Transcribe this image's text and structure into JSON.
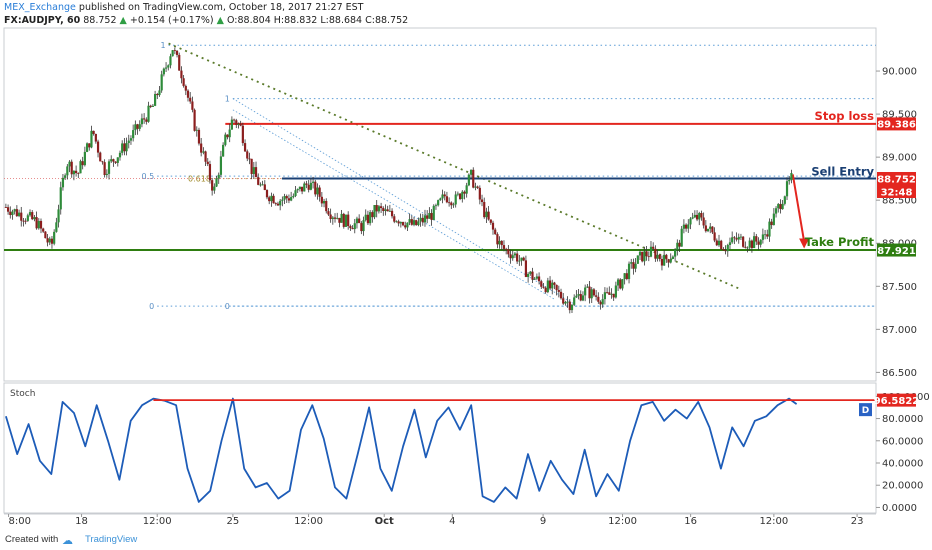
{
  "header": {
    "publisher": "MEX_Exchange",
    "published_text": "published on TradingView.com, October 18, 2017 21:27 EST",
    "symbol": "FX:AUDJPY, 60",
    "last": "88.752",
    "up_arrow_icon": "triangle-up",
    "change": "+0.154 (+0.17%)",
    "ohlc": "O:88.804 H:88.832 L:88.684 C:88.752"
  },
  "footer": {
    "created_with": "Created with",
    "brand_icon": "tradingview-cloud-icon",
    "brand": "TradingView"
  },
  "chart_data": [
    {
      "type": "candlestick",
      "symbol": "FX:AUDJPY",
      "interval": "60",
      "y_ticks": [
        "90.000",
        "89.500",
        "89.000",
        "88.500",
        "88.000",
        "87.500",
        "87.000",
        "86.500"
      ],
      "ylim": [
        86.4,
        90.5
      ],
      "x_tick_labels": [
        "8:00",
        "18",
        "12:00",
        "25",
        "12:00",
        "Oct",
        "4",
        "9",
        "12:00",
        "16",
        "12:00",
        "23"
      ],
      "x_tick_pos": [
        0.07,
        2.0,
        4.0,
        6.0,
        8.0,
        10.0,
        11.8,
        14.2,
        16.3,
        18.1,
        20.3,
        22.5
      ],
      "xlim": [
        -0.05,
        23.0
      ],
      "path_anchors": [
        [
          0.0,
          88.42
        ],
        [
          0.8,
          88.25
        ],
        [
          1.2,
          87.95
        ],
        [
          1.6,
          88.95
        ],
        [
          1.9,
          88.8
        ],
        [
          2.3,
          89.3
        ],
        [
          2.6,
          88.85
        ],
        [
          3.0,
          89.05
        ],
        [
          3.5,
          89.35
        ],
        [
          3.9,
          89.6
        ],
        [
          4.4,
          90.28
        ],
        [
          4.7,
          89.9
        ],
        [
          5.0,
          89.35
        ],
        [
          5.3,
          88.9
        ],
        [
          5.5,
          88.6
        ],
        [
          5.8,
          89.2
        ],
        [
          6.0,
          89.45
        ],
        [
          6.2,
          89.35
        ],
        [
          6.5,
          88.85
        ],
        [
          6.8,
          88.6
        ],
        [
          7.2,
          88.5
        ],
        [
          7.6,
          88.55
        ],
        [
          8.0,
          88.7
        ],
        [
          8.3,
          88.55
        ],
        [
          8.6,
          88.35
        ],
        [
          9.0,
          88.25
        ],
        [
          9.4,
          88.2
        ],
        [
          9.8,
          88.4
        ],
        [
          10.3,
          88.3
        ],
        [
          10.8,
          88.2
        ],
        [
          11.3,
          88.35
        ],
        [
          11.6,
          88.55
        ],
        [
          11.9,
          88.5
        ],
        [
          12.3,
          88.78
        ],
        [
          12.7,
          88.3
        ],
        [
          13.1,
          87.95
        ],
        [
          13.5,
          87.85
        ],
        [
          13.8,
          87.65
        ],
        [
          14.1,
          87.55
        ],
        [
          14.5,
          87.45
        ],
        [
          14.9,
          87.3
        ],
        [
          15.3,
          87.45
        ],
        [
          15.8,
          87.35
        ],
        [
          16.1,
          87.45
        ],
        [
          16.4,
          87.65
        ],
        [
          16.8,
          87.85
        ],
        [
          17.1,
          87.9
        ],
        [
          17.4,
          87.8
        ],
        [
          17.7,
          87.9
        ],
        [
          18.0,
          88.25
        ],
        [
          18.3,
          88.3
        ],
        [
          18.7,
          88.1
        ],
        [
          19.0,
          87.95
        ],
        [
          19.3,
          88.05
        ],
        [
          19.7,
          88.0
        ],
        [
          20.0,
          88.05
        ],
        [
          20.3,
          88.3
        ],
        [
          20.6,
          88.6
        ],
        [
          20.8,
          88.78
        ]
      ],
      "stop_loss": {
        "label": "Stop loss",
        "price": 89.386,
        "price_label": "89.386",
        "color": "#e3261f"
      },
      "sell_entry": {
        "label": "Sell Entry",
        "price": 88.752,
        "price_label": "88.752",
        "countdown": "32:48",
        "color": "#1a3f73"
      },
      "take_profit": {
        "label": "Take Profit",
        "price": 87.921,
        "price_label": "87.921",
        "color": "#2e7d10"
      },
      "fibonacci": {
        "upper": [
          {
            "label": "1",
            "price": 90.3,
            "x_start": 4.3
          },
          {
            "label": "0.5",
            "price": 88.78,
            "x_start": 4.0
          },
          {
            "label": "0",
            "price": 87.27,
            "x_start": 4.0
          }
        ],
        "lower": [
          {
            "label": "1",
            "price": 89.68,
            "x_start": 6.0
          },
          {
            "label": "0.618",
            "price": 88.75,
            "x_start": 5.5
          },
          {
            "label": "0",
            "price": 87.27,
            "x_start": 6.0
          }
        ]
      },
      "trendline": {
        "from": [
          4.3,
          90.32
        ],
        "to": [
          19.4,
          87.47
        ]
      },
      "channel_lines": [
        {
          "from": [
            6.0,
            89.68
          ],
          "to": [
            15.0,
            87.3
          ]
        },
        {
          "from": [
            6.0,
            89.55
          ],
          "to": [
            14.5,
            87.35
          ]
        }
      ],
      "projection_arrow": {
        "from": [
          20.8,
          88.8
        ],
        "to": [
          21.1,
          87.95
        ]
      },
      "last_price_line": 88.752
    },
    {
      "type": "line",
      "name": "Stoch",
      "y_ticks": [
        "100.0000",
        "80.0000",
        "60.0000",
        "40.0000",
        "20.0000",
        "0.0000"
      ],
      "ylim": [
        -5,
        112
      ],
      "level_price_label": "96.5822",
      "level": 96.5822,
      "d_badge": "D",
      "anchors": [
        [
          0.0,
          82
        ],
        [
          0.3,
          48
        ],
        [
          0.6,
          75
        ],
        [
          0.9,
          42
        ],
        [
          1.2,
          30
        ],
        [
          1.5,
          95
        ],
        [
          1.8,
          85
        ],
        [
          2.1,
          55
        ],
        [
          2.4,
          92
        ],
        [
          2.7,
          60
        ],
        [
          3.0,
          25
        ],
        [
          3.3,
          78
        ],
        [
          3.6,
          92
        ],
        [
          3.9,
          98
        ],
        [
          4.2,
          96
        ],
        [
          4.5,
          92
        ],
        [
          4.8,
          35
        ],
        [
          5.1,
          5
        ],
        [
          5.4,
          15
        ],
        [
          5.7,
          60
        ],
        [
          6.0,
          98
        ],
        [
          6.3,
          35
        ],
        [
          6.6,
          18
        ],
        [
          6.9,
          22
        ],
        [
          7.2,
          8
        ],
        [
          7.5,
          15
        ],
        [
          7.8,
          70
        ],
        [
          8.1,
          92
        ],
        [
          8.4,
          62
        ],
        [
          8.7,
          18
        ],
        [
          9.0,
          8
        ],
        [
          9.3,
          48
        ],
        [
          9.6,
          90
        ],
        [
          9.9,
          35
        ],
        [
          10.2,
          15
        ],
        [
          10.5,
          55
        ],
        [
          10.8,
          88
        ],
        [
          11.1,
          45
        ],
        [
          11.4,
          78
        ],
        [
          11.7,
          90
        ],
        [
          12.0,
          70
        ],
        [
          12.3,
          92
        ],
        [
          12.6,
          10
        ],
        [
          12.9,
          5
        ],
        [
          13.2,
          18
        ],
        [
          13.5,
          8
        ],
        [
          13.8,
          48
        ],
        [
          14.1,
          15
        ],
        [
          14.4,
          42
        ],
        [
          14.7,
          25
        ],
        [
          15.0,
          12
        ],
        [
          15.3,
          52
        ],
        [
          15.6,
          10
        ],
        [
          15.9,
          30
        ],
        [
          16.2,
          15
        ],
        [
          16.5,
          60
        ],
        [
          16.8,
          92
        ],
        [
          17.1,
          95
        ],
        [
          17.4,
          78
        ],
        [
          17.7,
          88
        ],
        [
          18.0,
          80
        ],
        [
          18.3,
          95
        ],
        [
          18.6,
          72
        ],
        [
          18.9,
          35
        ],
        [
          19.2,
          72
        ],
        [
          19.5,
          55
        ],
        [
          19.8,
          78
        ],
        [
          20.1,
          82
        ],
        [
          20.4,
          92
        ],
        [
          20.7,
          98
        ],
        [
          20.9,
          93
        ]
      ]
    }
  ]
}
